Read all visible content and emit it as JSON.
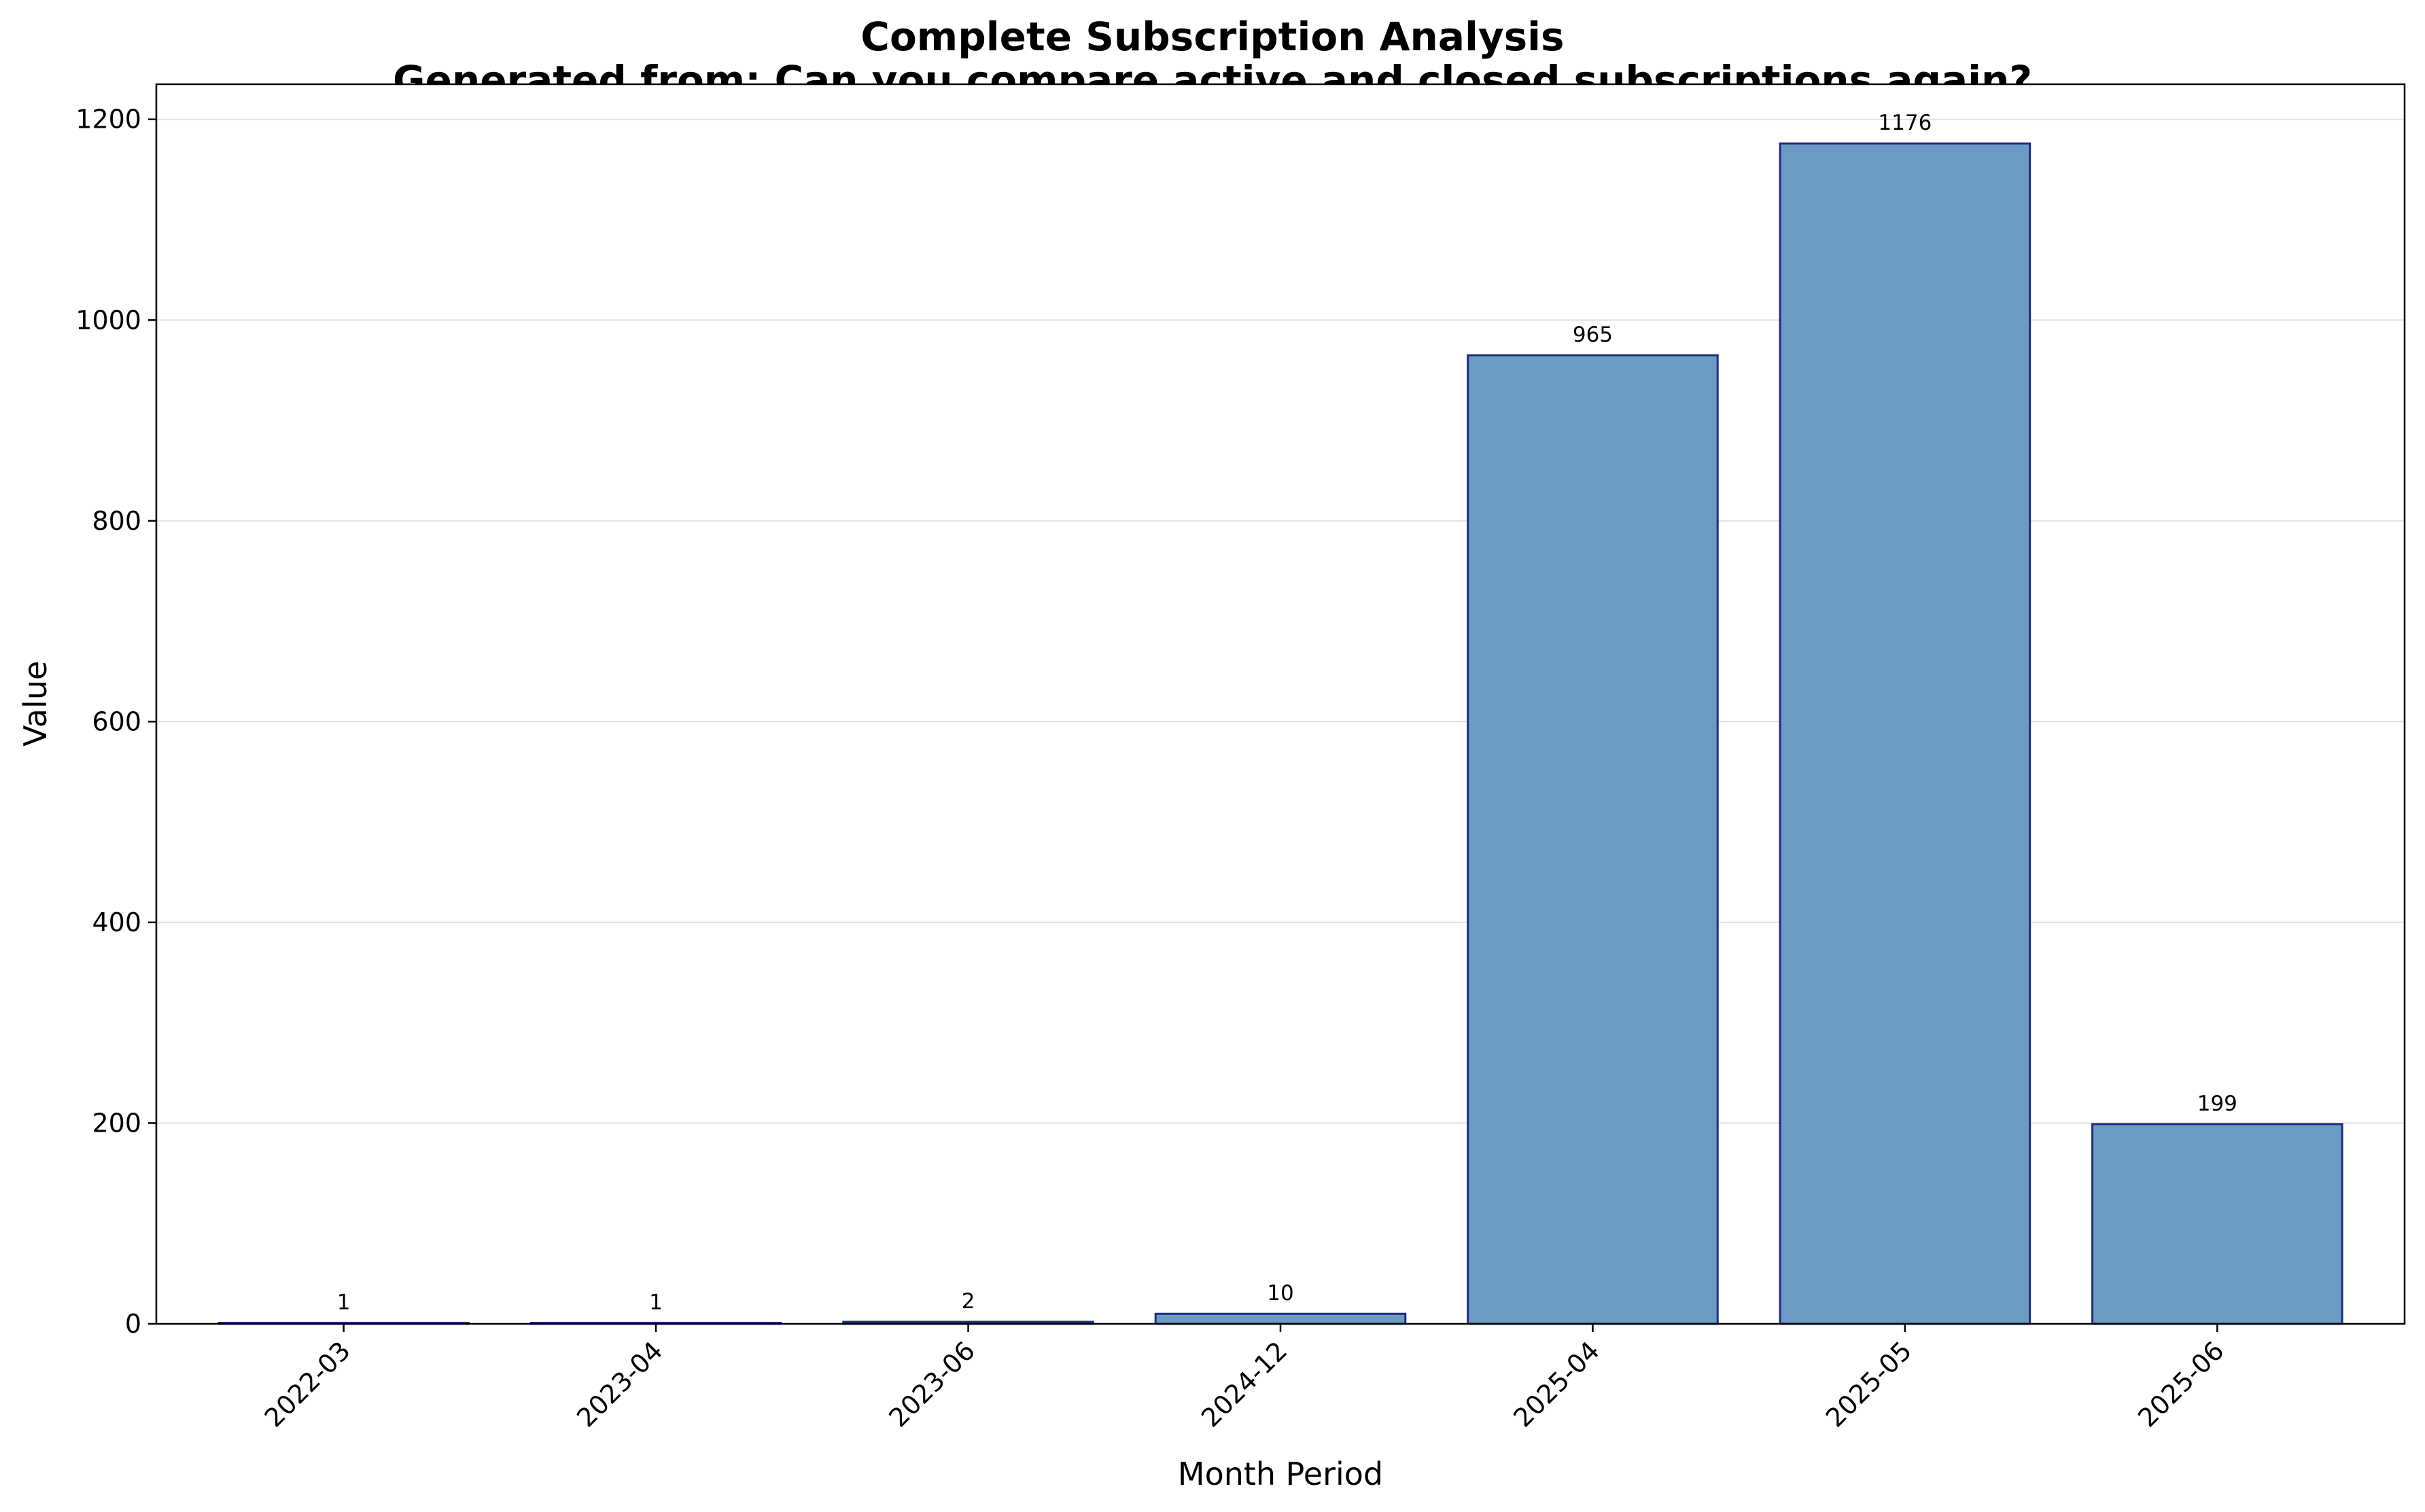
{
  "chart_data": {
    "type": "bar",
    "title": "Complete Subscription Analysis",
    "subtitle": "Generated from: Can you compare active and closed subscriptions again?",
    "xlabel": "Month Period",
    "ylabel": "Value",
    "categories": [
      "2022-03",
      "2023-04",
      "2023-06",
      "2024-12",
      "2025-04",
      "2025-05",
      "2025-06"
    ],
    "values": [
      1,
      1,
      2,
      10,
      965,
      1176,
      199
    ],
    "value_labels": [
      "1",
      "1",
      "2",
      "10",
      "965",
      "1176",
      "199"
    ],
    "ylim": [
      0,
      1235
    ],
    "yticks": [
      0,
      200,
      400,
      600,
      800,
      1000,
      1200
    ],
    "ytick_labels": [
      "0",
      "200",
      "400",
      "600",
      "800",
      "1000",
      "1200"
    ],
    "grid": "horizontal",
    "legend": "none",
    "colors": {
      "bar_fill": "#6b9bc3",
      "bar_edge": "#1f2a80",
      "grid": "#e0e0e0",
      "axes": "#000000"
    }
  }
}
